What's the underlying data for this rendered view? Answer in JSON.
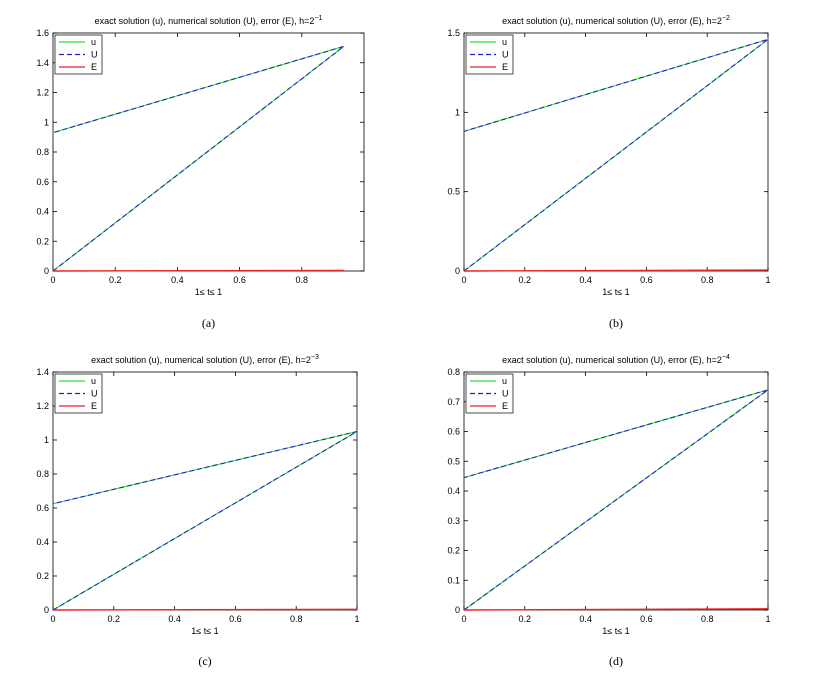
{
  "colors": {
    "u": "#33dd33",
    "U": "#2222cc",
    "E": "#ee2222"
  },
  "chart_data": [
    {
      "type": "line",
      "caption": "(a)",
      "title": "exact solution (u), numerical solution (U), error (E), h=2",
      "title_exp": "−1",
      "xlabel": "1≤ t≤ 1",
      "xlim": [
        0,
        1
      ],
      "ylim": [
        0,
        1.6
      ],
      "xticks": [
        0,
        0.2,
        0.4,
        0.6,
        0.8
      ],
      "xtick_labels": [
        "0",
        "0.2",
        "0.4",
        "0.6",
        "0.8"
      ],
      "yticks": [
        0,
        0.2,
        0.4,
        0.6,
        0.8,
        1,
        1.2,
        1.4,
        1.6
      ],
      "ytick_labels": [
        "0",
        "0.2",
        "0.4",
        "0.6",
        "0.8",
        "1",
        "1.2",
        "1.4",
        "1.6"
      ],
      "legend": [
        "u",
        "U",
        "E"
      ],
      "legend_position": "top-left",
      "series": [
        {
          "name": "u",
          "style": "solid",
          "x": [
            0,
            0.935,
            0
          ],
          "y": [
            0,
            1.51,
            0.93
          ]
        },
        {
          "name": "U",
          "style": "dashed",
          "x": [
            0,
            0.935,
            0
          ],
          "y": [
            0,
            1.51,
            0.93
          ]
        },
        {
          "name": "E",
          "style": "solid",
          "x": [
            0,
            0.935
          ],
          "y": [
            0,
            0.004
          ]
        }
      ]
    },
    {
      "type": "line",
      "caption": "(b)",
      "title": "exact solution (u), numerical solution (U), error (E), h=2",
      "title_exp": "−2",
      "xlabel": "1≤ t≤ 1",
      "xlim": [
        0,
        1
      ],
      "ylim": [
        0,
        1.5
      ],
      "xticks": [
        0,
        0.2,
        0.4,
        0.6,
        0.8,
        1
      ],
      "xtick_labels": [
        "0",
        "0.2",
        "0.4",
        "0.6",
        "0.8",
        "1"
      ],
      "yticks": [
        0,
        0.5,
        1,
        1.5
      ],
      "ytick_labels": [
        "0",
        "0.5",
        "1",
        "1.5"
      ],
      "legend": [
        "u",
        "U",
        "E"
      ],
      "legend_position": "top-left",
      "series": [
        {
          "name": "u",
          "style": "solid",
          "x": [
            0,
            1,
            0
          ],
          "y": [
            0,
            1.46,
            0.88
          ]
        },
        {
          "name": "U",
          "style": "dashed",
          "x": [
            0,
            1,
            0
          ],
          "y": [
            0,
            1.46,
            0.88
          ]
        },
        {
          "name": "E",
          "style": "solid",
          "x": [
            0,
            1
          ],
          "y": [
            0,
            0.006
          ]
        }
      ]
    },
    {
      "type": "line",
      "caption": "(c)",
      "title": "exact solution (u), numerical solution (U), error (E), h=2",
      "title_exp": "−3",
      "xlabel": "1≤ t≤ 1",
      "xlim": [
        0,
        1
      ],
      "ylim": [
        0,
        1.4
      ],
      "xticks": [
        0,
        0.2,
        0.4,
        0.6,
        0.8,
        1
      ],
      "xtick_labels": [
        "0",
        "0.2",
        "0.4",
        "0.6",
        "0.8",
        "1"
      ],
      "yticks": [
        0,
        0.2,
        0.4,
        0.6,
        0.8,
        1,
        1.2,
        1.4
      ],
      "ytick_labels": [
        "0",
        "0.2",
        "0.4",
        "0.6",
        "0.8",
        "1",
        "1.2",
        "1.4"
      ],
      "legend": [
        "u",
        "U",
        "E"
      ],
      "legend_position": "top-left",
      "series": [
        {
          "name": "u",
          "style": "solid",
          "x": [
            0,
            1,
            0
          ],
          "y": [
            0,
            1.05,
            0.625
          ]
        },
        {
          "name": "U",
          "style": "dashed",
          "x": [
            0,
            1,
            0
          ],
          "y": [
            0,
            1.05,
            0.625
          ]
        },
        {
          "name": "E",
          "style": "solid",
          "x": [
            0,
            1
          ],
          "y": [
            0,
            0.004
          ]
        }
      ]
    },
    {
      "type": "line",
      "caption": "(d)",
      "title": "exact solution (u), numerical solution (U), error (E), h=2",
      "title_exp": "−4",
      "xlabel": "1≤ t≤ 1",
      "xlim": [
        0,
        1
      ],
      "ylim": [
        0,
        0.8
      ],
      "xticks": [
        0,
        0.2,
        0.4,
        0.6,
        0.8,
        1
      ],
      "xtick_labels": [
        "0",
        "0.2",
        "0.4",
        "0.6",
        "0.8",
        "1"
      ],
      "yticks": [
        0,
        0.1,
        0.2,
        0.3,
        0.4,
        0.5,
        0.6,
        0.7,
        0.8
      ],
      "ytick_labels": [
        "0",
        "0.1",
        "0.2",
        "0.3",
        "0.4",
        "0.5",
        "0.6",
        "0.7",
        "0.8"
      ],
      "legend": [
        "u",
        "U",
        "E"
      ],
      "legend_position": "top-left",
      "series": [
        {
          "name": "u",
          "style": "solid",
          "x": [
            0,
            1,
            0
          ],
          "y": [
            0,
            0.74,
            0.445
          ]
        },
        {
          "name": "U",
          "style": "dashed",
          "x": [
            0,
            1,
            0
          ],
          "y": [
            0,
            0.74,
            0.445
          ]
        },
        {
          "name": "E",
          "style": "solid",
          "x": [
            0,
            1
          ],
          "y": [
            0,
            0.004
          ]
        }
      ]
    }
  ]
}
